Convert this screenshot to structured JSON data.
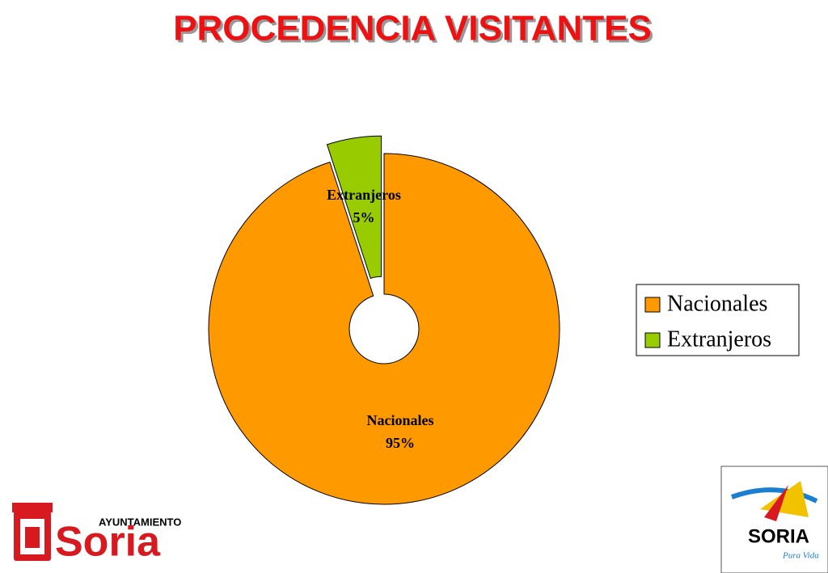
{
  "chart_data": {
    "type": "donut",
    "title": "PROCEDENCIA VISITANTES",
    "categories": [
      "Nacionales",
      "Extranjeros"
    ],
    "values": [
      95,
      5
    ],
    "value_labels": [
      "95%",
      "5%"
    ],
    "colors": [
      "#ff9900",
      "#99cc00"
    ],
    "legend": "right"
  },
  "logos": {
    "left": [
      "AYUNTAMIENTO",
      "Soria"
    ],
    "right": [
      "SORIA",
      "Pura Vida"
    ]
  }
}
